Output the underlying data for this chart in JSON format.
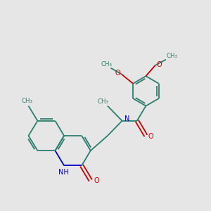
{
  "bg_color": "#e6e6e6",
  "bond_color": "#2d7d6e",
  "n_color": "#0000cc",
  "o_color": "#cc0000",
  "lw": 1.3,
  "figsize": [
    3.0,
    3.0
  ],
  "dpi": 100,
  "xlim": [
    0,
    10
  ],
  "ylim": [
    0,
    10
  ],
  "font_size_label": 7.0,
  "font_size_small": 6.2
}
